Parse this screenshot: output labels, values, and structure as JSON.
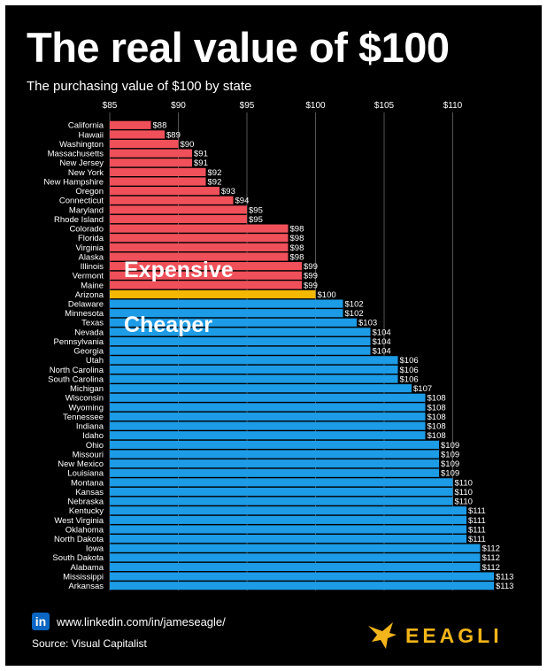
{
  "header": {
    "title": "The real value of $100",
    "subtitle": "The purchasing value of $100 by state"
  },
  "chart_data": {
    "type": "bar",
    "orientation": "horizontal",
    "title": "The real value of $100",
    "subtitle": "The purchasing value of $100 by state",
    "xlim": [
      85,
      113
    ],
    "x_ticks": [
      85,
      90,
      95,
      100,
      105,
      110
    ],
    "x_tick_labels": [
      "$85",
      "$90",
      "$95",
      "$100",
      "$105",
      "$110"
    ],
    "x_axis_position": "top",
    "grid": true,
    "categories": [
      "California",
      "Hawaii",
      "Washington",
      "Massachusetts",
      "New Jersey",
      "New York",
      "New Hampshire",
      "Oregon",
      "Connecticut",
      "Maryland",
      "Rhode Island",
      "Colorado",
      "Florida",
      "Virginia",
      "Alaska",
      "Illinois",
      "Vermont",
      "Maine",
      "Arizona",
      "Delaware",
      "Minnesota",
      "Texas",
      "Nevada",
      "Pennsylvania",
      "Georgia",
      "Utah",
      "North Carolina",
      "South Carolina",
      "Michigan",
      "Wisconsin",
      "Wyoming",
      "Tennessee",
      "Indiana",
      "Idaho",
      "Ohio",
      "Missouri",
      "New Mexico",
      "Louisiana",
      "Montana",
      "Kansas",
      "Nebraska",
      "Kentucky",
      "West Virginia",
      "Oklahoma",
      "North Dakota",
      "Iowa",
      "South Dakota",
      "Alabama",
      "Mississippi",
      "Arkansas"
    ],
    "values": [
      88,
      89,
      90,
      91,
      91,
      92,
      92,
      93,
      94,
      95,
      95,
      98,
      98,
      98,
      98,
      99,
      99,
      99,
      100,
      102,
      102,
      103,
      104,
      104,
      104,
      106,
      106,
      106,
      107,
      108,
      108,
      108,
      108,
      108,
      109,
      109,
      109,
      109,
      110,
      110,
      110,
      111,
      111,
      111,
      111,
      112,
      112,
      112,
      113,
      113
    ],
    "value_labels": [
      "$88",
      "$89",
      "$90",
      "$91",
      "$91",
      "$92",
      "$92",
      "$93",
      "$94",
      "$95",
      "$95",
      "$98",
      "$98",
      "$98",
      "$98",
      "$99",
      "$99",
      "$99",
      "$100",
      "$102",
      "$102",
      "$103",
      "$104",
      "$104",
      "$104",
      "$106",
      "$106",
      "$106",
      "$107",
      "$108",
      "$108",
      "$108",
      "$108",
      "$108",
      "$109",
      "$109",
      "$109",
      "$109",
      "$110",
      "$110",
      "$110",
      "$111",
      "$111",
      "$111",
      "$111",
      "$112",
      "$112",
      "$112",
      "$113",
      "$113"
    ],
    "colors": {
      "expensive": "#f0505a",
      "neutral": "#f5b800",
      "cheaper": "#1c9be6",
      "grid": "#555555",
      "text": "#ffffff",
      "background": "#000000"
    },
    "annotations": [
      {
        "text": "Expensive",
        "group": "expensive"
      },
      {
        "text": "Cheaper",
        "group": "cheaper"
      }
    ]
  },
  "footer": {
    "linkedin_icon": "in",
    "link_text": "www.linkedin.com/in/jameseagle/",
    "source": "Source: Visual Capitalist",
    "brand_name": "EEAGLI",
    "brand_icon": "eagle-icon"
  }
}
